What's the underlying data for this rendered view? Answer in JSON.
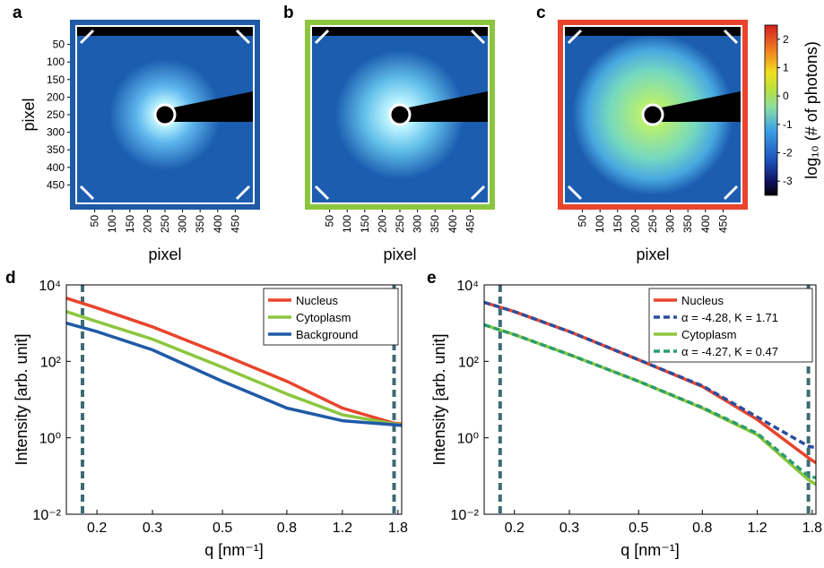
{
  "chart_data": [
    {
      "type": "image",
      "panel_label": "a",
      "frame_color": "#1f5aa6",
      "xlabel": "pixel",
      "ylabel": "pixel",
      "xlim": [
        0,
        500
      ],
      "ylim": [
        500,
        0
      ],
      "xticks": [
        50,
        100,
        150,
        200,
        250,
        300,
        350,
        400,
        450
      ],
      "yticks": [
        50,
        100,
        150,
        200,
        250,
        300,
        350,
        400,
        450
      ]
    },
    {
      "type": "image",
      "panel_label": "b",
      "frame_color": "#8cc63f",
      "xlabel": "pixel",
      "xlim": [
        0,
        500
      ],
      "ylim": [
        500,
        0
      ],
      "xticks": [
        50,
        100,
        150,
        200,
        250,
        300,
        350,
        400,
        450
      ]
    },
    {
      "type": "image",
      "panel_label": "c",
      "frame_color": "#e8452c",
      "xlabel": "pixel",
      "xlim": [
        0,
        500
      ],
      "ylim": [
        500,
        0
      ],
      "xticks": [
        50,
        100,
        150,
        200,
        250,
        300,
        350,
        400,
        450
      ]
    },
    {
      "type": "colorbar",
      "label": "log₁₀ (# of photons)",
      "ylim": [
        -3.5,
        2.5
      ],
      "yticks": [
        2,
        1,
        0,
        -1,
        -2,
        -3
      ]
    },
    {
      "type": "line",
      "panel_label": "d",
      "xlabel": "q [nm⁻¹]",
      "ylabel": "Intensity [arb. unit]",
      "log_x": true,
      "log_y": true,
      "xlim": [
        0.16,
        1.85
      ],
      "ylim": [
        0.01,
        10000
      ],
      "xticks": [
        0.2,
        0.3,
        0.5,
        0.8,
        1.2,
        1.8
      ],
      "yticks": [
        {
          "value": 0.01,
          "label": "10⁻²"
        },
        {
          "value": 1,
          "label": "10⁰"
        },
        {
          "value": 100,
          "label": "10²"
        },
        {
          "value": 10000,
          "label": "10⁴"
        }
      ],
      "vlines": [
        0.18,
        1.75
      ],
      "vline_color": "#3e6b73",
      "legend": "upper right",
      "x": [
        0.16,
        0.2,
        0.3,
        0.5,
        0.8,
        1.2,
        1.75,
        1.85
      ],
      "series": [
        {
          "name": "Nucleus",
          "color": "#e8452c",
          "style": "solid",
          "values": [
            4500,
            2500,
            800,
            150,
            30,
            6,
            2.4,
            2.3
          ]
        },
        {
          "name": "Cytoplasm",
          "color": "#8cc63f",
          "style": "solid",
          "values": [
            2000,
            1100,
            380,
            70,
            14,
            4,
            2.3,
            2.2
          ]
        },
        {
          "name": "Background",
          "color": "#1f5aa6",
          "style": "solid",
          "values": [
            1000,
            600,
            200,
            30,
            6,
            2.8,
            2.2,
            2.1
          ]
        }
      ]
    },
    {
      "type": "line",
      "panel_label": "e",
      "xlabel": "q [nm⁻¹]",
      "ylabel": "Intensity [arb. unit]",
      "log_x": true,
      "log_y": true,
      "xlim": [
        0.16,
        1.85
      ],
      "ylim": [
        0.01,
        10000
      ],
      "xticks": [
        0.2,
        0.3,
        0.5,
        0.8,
        1.2,
        1.8
      ],
      "yticks": [
        {
          "value": 0.01,
          "label": "10⁻²"
        },
        {
          "value": 1,
          "label": "10⁰"
        },
        {
          "value": 100,
          "label": "10²"
        },
        {
          "value": 10000,
          "label": "10⁴"
        }
      ],
      "vlines": [
        0.18,
        1.75
      ],
      "vline_color": "#3e6b73",
      "legend": "upper right",
      "x": [
        0.16,
        0.2,
        0.3,
        0.5,
        0.8,
        1.2,
        1.75,
        1.85
      ],
      "series": [
        {
          "name": "Nucleus",
          "color": "#e8452c",
          "style": "solid",
          "values": [
            3500,
            2000,
            600,
            110,
            22,
            3,
            0.3,
            0.22
          ]
        },
        {
          "name": "α = -4.28, K = 1.71",
          "color": "#2b4f9e",
          "style": "dashed",
          "values": [
            3500,
            2000,
            600,
            110,
            23,
            3.5,
            0.6,
            0.55
          ]
        },
        {
          "name": "Cytoplasm",
          "color": "#8cc63f",
          "style": "solid",
          "values": [
            900,
            500,
            150,
            30,
            6,
            1.2,
            0.08,
            0.06
          ]
        },
        {
          "name": "α = -4.27, K = 0.47",
          "color": "#2a9d6e",
          "style": "dashed",
          "values": [
            900,
            500,
            150,
            30,
            6.2,
            1.3,
            0.1,
            0.09
          ]
        }
      ]
    }
  ]
}
